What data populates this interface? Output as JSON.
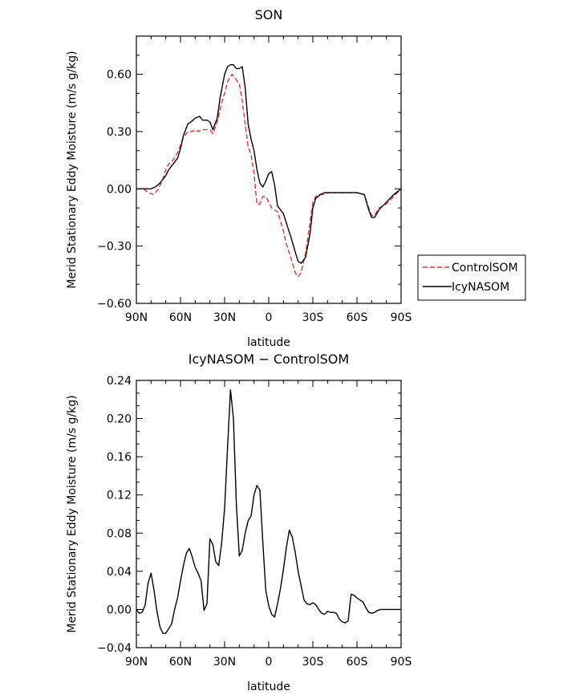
{
  "chart_data": [
    {
      "type": "line",
      "title": "SON",
      "xlabel": "latitude",
      "ylabel": "Merid Stationary Eddy Moisture (m/s g/kg)",
      "xlim": [
        90,
        -90
      ],
      "ylim": [
        -0.6,
        0.8
      ],
      "xticks": [
        90,
        60,
        30,
        0,
        -30,
        -60,
        -90
      ],
      "xtick_labels": [
        "90N",
        "60N",
        "30N",
        "0",
        "30S",
        "60S",
        "90S"
      ],
      "yticks": [
        -0.6,
        -0.3,
        0.0,
        0.3,
        0.6
      ],
      "ytick_labels": [
        "−0.60",
        "−0.30",
        "0.00",
        "0.30",
        "0.60"
      ],
      "legend_position": "right",
      "series": [
        {
          "name": "ControlSOM",
          "color": "#e8312f",
          "dash": "dashed",
          "x": [
            90,
            85,
            82,
            78,
            75,
            72,
            70,
            68,
            65,
            62,
            60,
            58,
            55,
            52,
            50,
            48,
            45,
            42,
            40,
            38,
            35,
            32,
            30,
            28,
            25,
            22,
            20,
            18,
            16,
            14,
            12,
            10,
            8,
            6,
            4,
            2,
            0,
            -2,
            -4,
            -6,
            -8,
            -10,
            -12,
            -15,
            -18,
            -20,
            -22,
            -25,
            -28,
            -30,
            -32,
            -35,
            -38,
            -40,
            -45,
            -50,
            -55,
            -60,
            -65,
            -68,
            -70,
            -72,
            -75,
            -80,
            -85,
            -90
          ],
          "y": [
            0.0,
            0.0,
            -0.02,
            -0.03,
            0.0,
            0.05,
            0.1,
            0.13,
            0.15,
            0.19,
            0.23,
            0.27,
            0.3,
            0.3,
            0.31,
            0.3,
            0.31,
            0.31,
            0.31,
            0.29,
            0.35,
            0.45,
            0.5,
            0.56,
            0.6,
            0.57,
            0.55,
            0.46,
            0.34,
            0.22,
            0.18,
            0.08,
            -0.08,
            -0.08,
            -0.04,
            -0.04,
            -0.07,
            -0.1,
            -0.11,
            -0.12,
            -0.17,
            -0.22,
            -0.29,
            -0.36,
            -0.44,
            -0.46,
            -0.44,
            -0.34,
            -0.18,
            -0.07,
            -0.04,
            -0.03,
            -0.03,
            -0.02,
            -0.02,
            -0.02,
            -0.02,
            -0.02,
            -0.03,
            -0.1,
            -0.14,
            -0.14,
            -0.1,
            -0.08,
            -0.04,
            0.0
          ]
        },
        {
          "name": "IcyNASOM",
          "color": "#000000",
          "dash": "solid",
          "x": [
            90,
            85,
            80,
            77,
            74,
            70,
            68,
            65,
            62,
            60,
            58,
            55,
            53,
            50,
            47,
            45,
            42,
            40,
            38,
            35,
            33,
            30,
            28,
            26,
            24,
            22,
            20,
            18,
            16,
            14,
            12,
            10,
            8,
            6,
            4,
            2,
            0,
            -2,
            -4,
            -6,
            -8,
            -10,
            -12,
            -15,
            -18,
            -20,
            -22,
            -25,
            -28,
            -30,
            -32,
            -35,
            -38,
            -40,
            -45,
            -50,
            -55,
            -60,
            -65,
            -68,
            -70,
            -72,
            -75,
            -80,
            -85,
            -90
          ],
          "y": [
            0.0,
            0.0,
            0.0,
            0.01,
            0.03,
            0.07,
            0.1,
            0.13,
            0.16,
            0.21,
            0.28,
            0.34,
            0.35,
            0.37,
            0.38,
            0.36,
            0.36,
            0.35,
            0.31,
            0.37,
            0.48,
            0.6,
            0.64,
            0.65,
            0.65,
            0.63,
            0.63,
            0.64,
            0.53,
            0.34,
            0.26,
            0.2,
            0.1,
            0.03,
            0.01,
            0.04,
            0.08,
            0.09,
            0.02,
            -0.09,
            -0.11,
            -0.13,
            -0.18,
            -0.25,
            -0.33,
            -0.38,
            -0.39,
            -0.36,
            -0.24,
            -0.1,
            -0.05,
            -0.03,
            -0.02,
            -0.02,
            -0.02,
            -0.02,
            -0.02,
            -0.02,
            -0.03,
            -0.11,
            -0.15,
            -0.15,
            -0.11,
            -0.07,
            -0.03,
            0.0
          ]
        }
      ]
    },
    {
      "type": "line",
      "title": "IcyNASOM − ControlSOM",
      "xlabel": "latitude",
      "ylabel": "Merid Stationary Eddy Moisture (m/s g/kg)",
      "xlim": [
        90,
        -90
      ],
      "ylim": [
        -0.04,
        0.24
      ],
      "xticks": [
        90,
        60,
        30,
        0,
        -30,
        -60,
        -90
      ],
      "xtick_labels": [
        "90N",
        "60N",
        "30N",
        "0",
        "30S",
        "60S",
        "90S"
      ],
      "yticks": [
        -0.04,
        0.0,
        0.04,
        0.08,
        0.12,
        0.16,
        0.2,
        0.24
      ],
      "ytick_labels": [
        "−0.04",
        "0.00",
        "0.04",
        "0.08",
        "0.12",
        "0.16",
        "0.20",
        "0.24"
      ],
      "series": [
        {
          "name": "",
          "color": "#000000",
          "dash": "solid",
          "x": [
            90,
            88,
            86,
            84,
            82,
            80,
            78,
            76,
            74,
            72,
            70,
            68,
            66,
            64,
            62,
            60,
            58,
            56,
            54,
            52,
            50,
            48,
            46,
            44,
            42,
            40,
            38,
            36,
            34,
            32,
            30,
            28,
            26,
            24,
            22,
            20,
            18,
            16,
            14,
            12,
            10,
            8,
            6,
            4,
            2,
            0,
            -2,
            -4,
            -6,
            -8,
            -10,
            -12,
            -14,
            -16,
            -18,
            -20,
            -22,
            -24,
            -26,
            -28,
            -30,
            -32,
            -34,
            -36,
            -38,
            -40,
            -42,
            -44,
            -46,
            -48,
            -50,
            -52,
            -54,
            -56,
            -58,
            -60,
            -62,
            -64,
            -66,
            -68,
            -70,
            -72,
            -74,
            -76,
            -78,
            -80,
            -82,
            -84,
            -86,
            -88,
            -90
          ],
          "y": [
            0.0,
            -0.004,
            -0.003,
            0.005,
            0.028,
            0.038,
            0.02,
            -0.002,
            -0.018,
            -0.025,
            -0.025,
            -0.02,
            -0.015,
            0.0,
            0.012,
            0.03,
            0.046,
            0.059,
            0.064,
            0.055,
            0.044,
            0.038,
            0.03,
            -0.001,
            0.006,
            0.074,
            0.068,
            0.05,
            0.046,
            0.07,
            0.106,
            0.17,
            0.23,
            0.2,
            0.11,
            0.056,
            0.062,
            0.08,
            0.093,
            0.098,
            0.12,
            0.13,
            0.125,
            0.07,
            0.02,
            0.004,
            -0.005,
            -0.008,
            0.006,
            0.022,
            0.042,
            0.065,
            0.083,
            0.076,
            0.06,
            0.04,
            0.025,
            0.01,
            0.006,
            0.005,
            0.007,
            0.005,
            0.0,
            -0.004,
            -0.005,
            -0.002,
            -0.003,
            -0.003,
            -0.004,
            -0.01,
            -0.013,
            -0.014,
            -0.012,
            0.016,
            0.015,
            0.012,
            0.01,
            0.008,
            0.002,
            -0.003,
            -0.004,
            -0.003,
            -0.001,
            0.0,
            0.0,
            0.0,
            0.0,
            0.0,
            0.0,
            0.0,
            0.0
          ]
        }
      ]
    }
  ]
}
